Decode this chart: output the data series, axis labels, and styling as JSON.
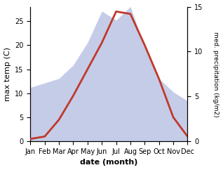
{
  "months": [
    "Jan",
    "Feb",
    "Mar",
    "Apr",
    "May",
    "Jun",
    "Jul",
    "Aug",
    "Sep",
    "Oct",
    "Nov",
    "Dec"
  ],
  "temperature": [
    0.5,
    1.0,
    4.5,
    9.5,
    15.0,
    20.5,
    27.0,
    26.5,
    20.0,
    13.0,
    5.0,
    1.0
  ],
  "precipitation": [
    6.0,
    6.5,
    7.0,
    8.5,
    11.0,
    14.5,
    13.5,
    15.0,
    10.5,
    7.0,
    5.5,
    4.5
  ],
  "temp_color": "#c0392b",
  "precip_fill_color": "#c5cce8",
  "ylabel_left": "max temp (C)",
  "ylabel_right": "med. precipitation (kg/m2)",
  "xlabel": "date (month)",
  "ylim_left": [
    0,
    28
  ],
  "ylim_right": [
    0,
    15
  ],
  "label_fontsize": 8,
  "tick_fontsize": 7,
  "right_yticks": [
    0,
    5,
    10,
    15
  ],
  "left_yticks": [
    0,
    5,
    10,
    15,
    20,
    25
  ]
}
